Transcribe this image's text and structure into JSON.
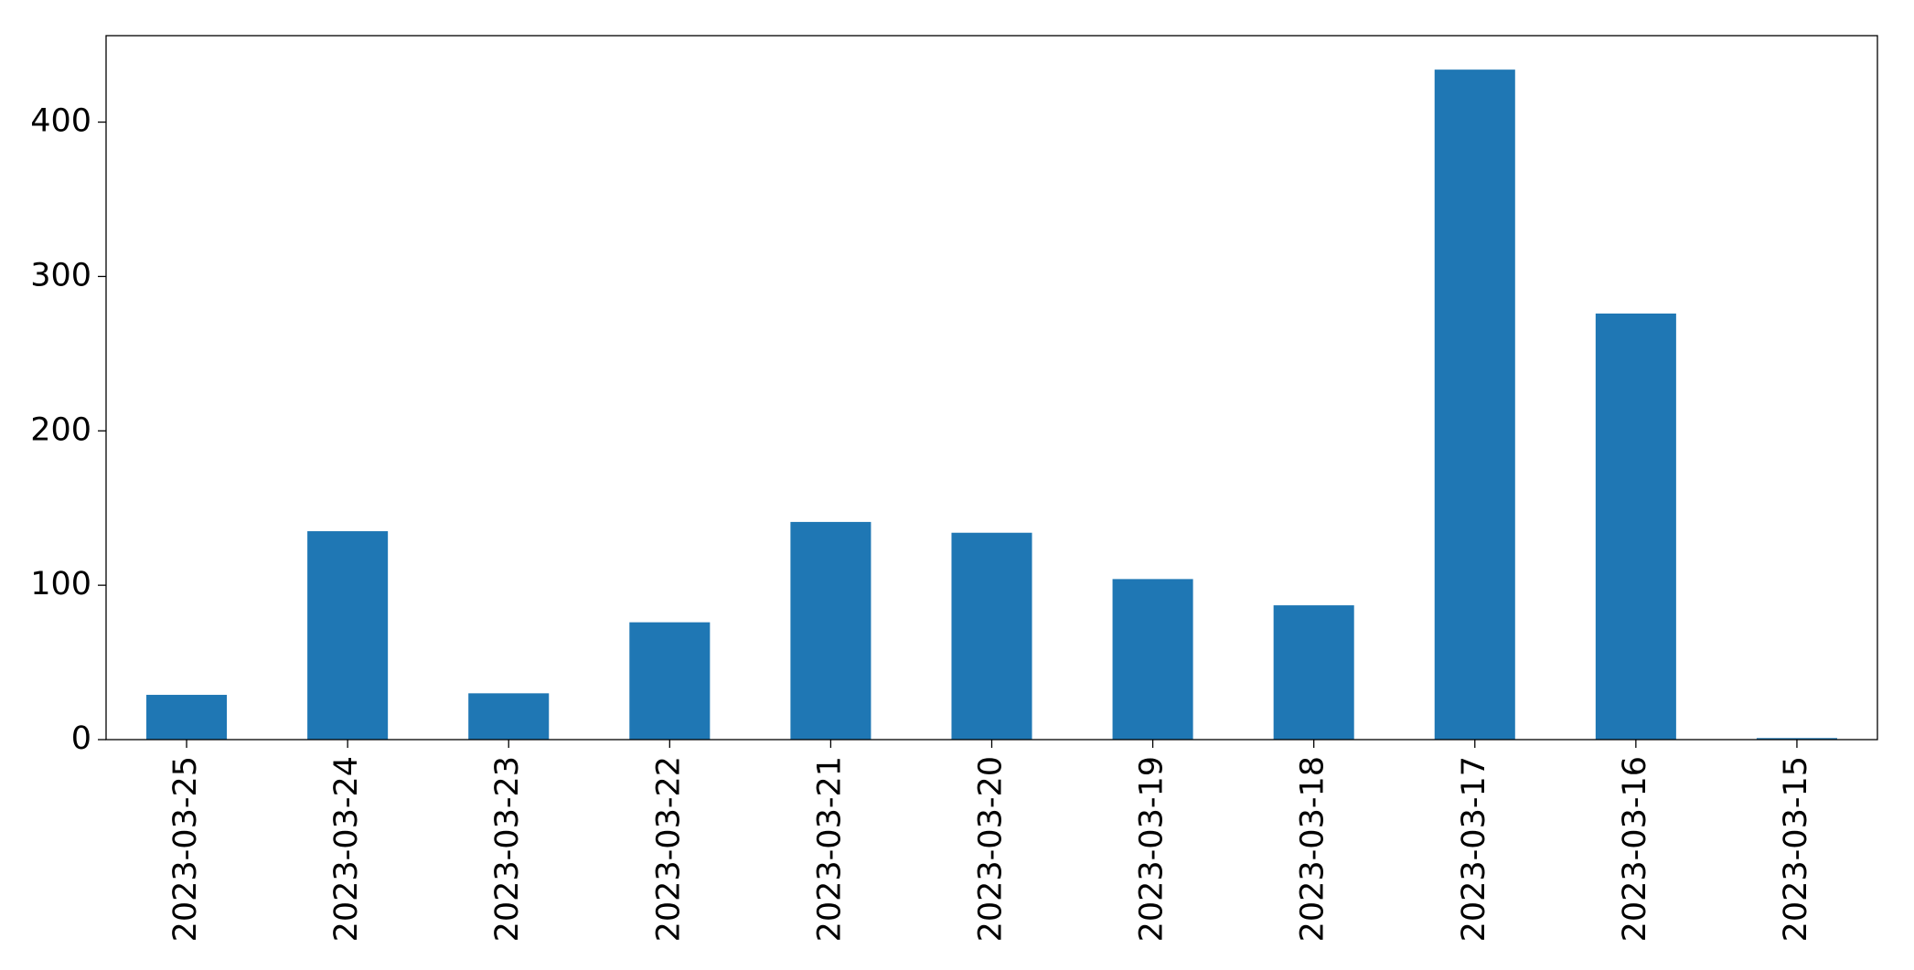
{
  "chart_data": {
    "type": "bar",
    "categories": [
      "2023-03-25",
      "2023-03-24",
      "2023-03-23",
      "2023-03-22",
      "2023-03-21",
      "2023-03-20",
      "2023-03-19",
      "2023-03-18",
      "2023-03-17",
      "2023-03-16",
      "2023-03-15"
    ],
    "values": [
      29,
      135,
      30,
      76,
      141,
      134,
      104,
      87,
      434,
      276,
      1
    ],
    "color": "#1f77b4",
    "ylim": [
      0,
      456
    ],
    "yticks": [
      0,
      100,
      200,
      300,
      400
    ],
    "grid": false
  }
}
